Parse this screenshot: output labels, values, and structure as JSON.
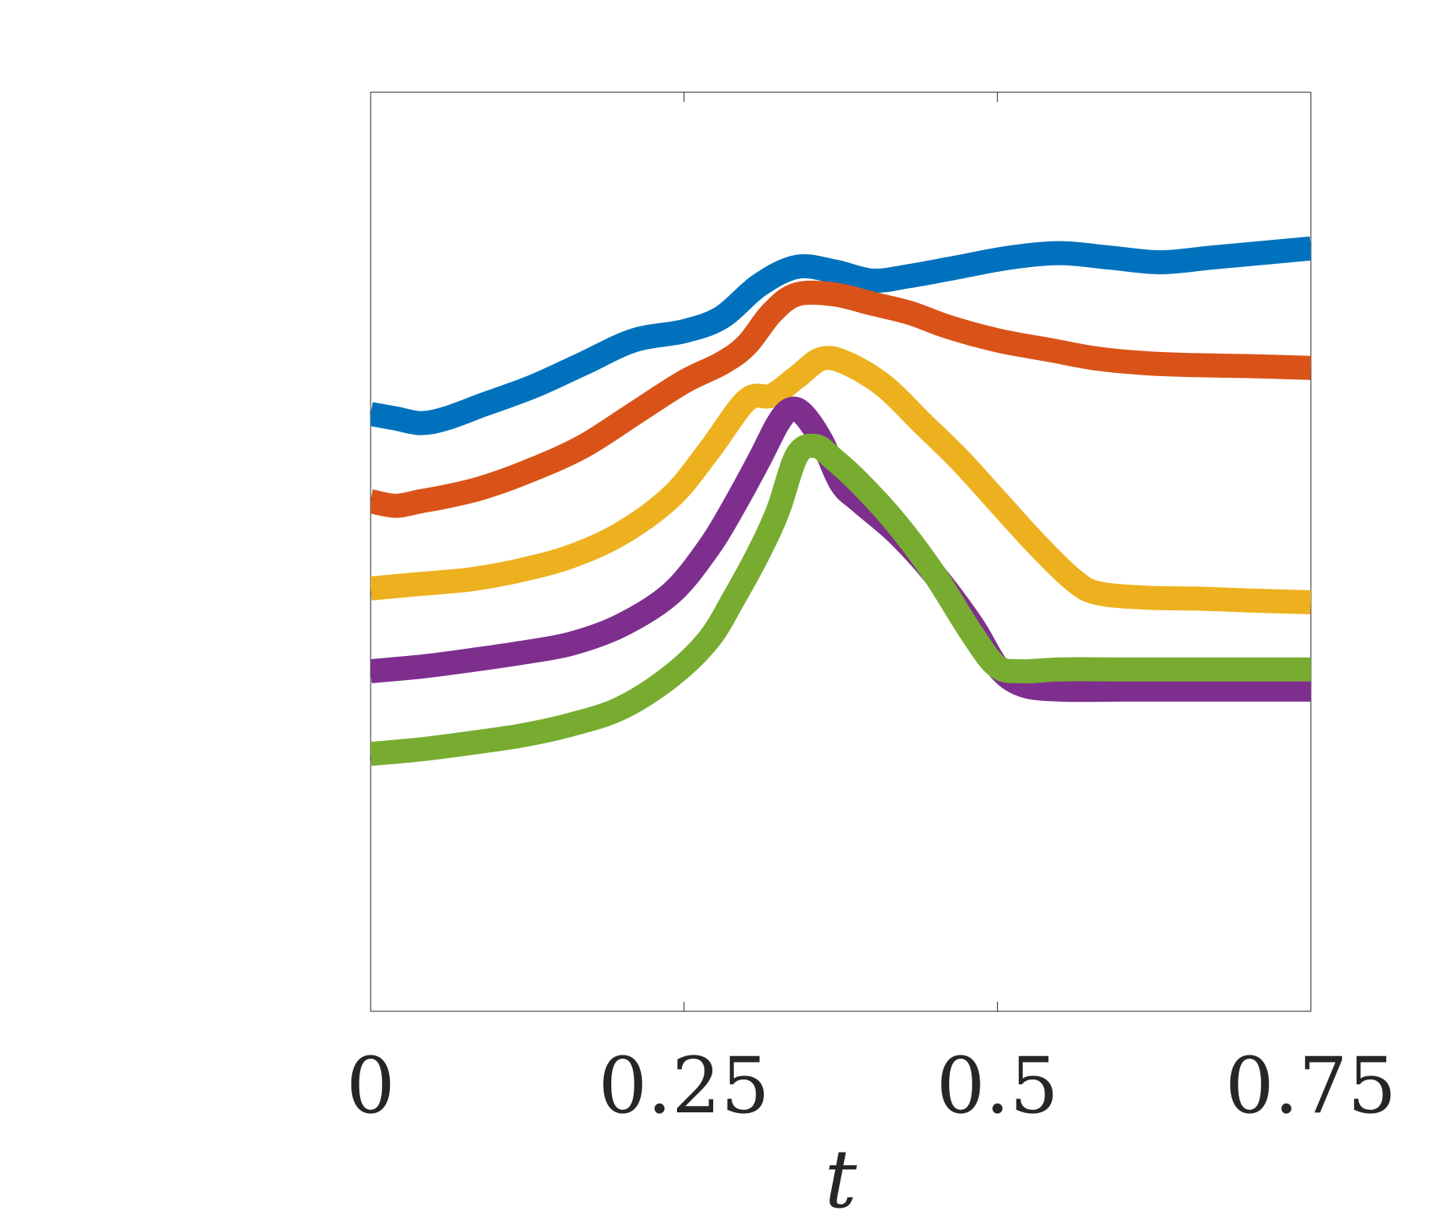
{
  "chart_data": {
    "type": "line",
    "title": "",
    "xlabel": "t",
    "ylabel": "",
    "xlim": [
      0,
      0.75
    ],
    "ylim": [
      0,
      1
    ],
    "xticks": [
      0,
      0.25,
      0.5,
      0.75
    ],
    "xtick_labels": [
      "0",
      "0.25",
      "0.5",
      "0.75"
    ],
    "grid": false,
    "legend": "none",
    "series": [
      {
        "color": "#0072BD",
        "x": [
          0,
          0.02,
          0.04,
          0.06,
          0.09,
          0.13,
          0.17,
          0.21,
          0.25,
          0.28,
          0.31,
          0.34,
          0.37,
          0.4,
          0.43,
          0.47,
          0.51,
          0.55,
          0.59,
          0.63,
          0.67,
          0.71,
          0.75
        ],
        "y": [
          0.65,
          0.645,
          0.64,
          0.645,
          0.66,
          0.68,
          0.705,
          0.73,
          0.74,
          0.755,
          0.79,
          0.81,
          0.805,
          0.795,
          0.8,
          0.81,
          0.82,
          0.825,
          0.82,
          0.815,
          0.82,
          0.825,
          0.83
        ]
      },
      {
        "color": "#D95319",
        "x": [
          0,
          0.02,
          0.04,
          0.06,
          0.09,
          0.13,
          0.17,
          0.21,
          0.25,
          0.28,
          0.3,
          0.32,
          0.34,
          0.37,
          0.4,
          0.43,
          0.46,
          0.5,
          0.54,
          0.58,
          0.62,
          0.66,
          0.7,
          0.75
        ],
        "y": [
          0.555,
          0.55,
          0.555,
          0.56,
          0.57,
          0.59,
          0.615,
          0.65,
          0.685,
          0.705,
          0.725,
          0.76,
          0.78,
          0.78,
          0.77,
          0.76,
          0.745,
          0.73,
          0.72,
          0.71,
          0.705,
          0.703,
          0.702,
          0.7
        ]
      },
      {
        "color": "#EDB120",
        "x": [
          0,
          0.04,
          0.08,
          0.12,
          0.16,
          0.2,
          0.24,
          0.27,
          0.3,
          0.32,
          0.34,
          0.36,
          0.38,
          0.41,
          0.44,
          0.47,
          0.5,
          0.53,
          0.56,
          0.58,
          0.62,
          0.66,
          0.7,
          0.75
        ],
        "y": [
          0.46,
          0.465,
          0.47,
          0.48,
          0.495,
          0.52,
          0.56,
          0.61,
          0.665,
          0.67,
          0.69,
          0.71,
          0.705,
          0.68,
          0.64,
          0.6,
          0.555,
          0.51,
          0.47,
          0.455,
          0.45,
          0.449,
          0.447,
          0.445
        ]
      },
      {
        "color": "#7E2F8E",
        "x": [
          0,
          0.04,
          0.08,
          0.12,
          0.16,
          0.2,
          0.24,
          0.27,
          0.29,
          0.31,
          0.325,
          0.335,
          0.345,
          0.36,
          0.375,
          0.39,
          0.42,
          0.45,
          0.48,
          0.5,
          0.52,
          0.55,
          0.6,
          0.65,
          0.7,
          0.75
        ],
        "y": [
          0.37,
          0.375,
          0.382,
          0.39,
          0.4,
          0.42,
          0.455,
          0.505,
          0.55,
          0.6,
          0.64,
          0.655,
          0.65,
          0.62,
          0.575,
          0.555,
          0.52,
          0.475,
          0.42,
          0.375,
          0.355,
          0.35,
          0.35,
          0.35,
          0.35,
          0.35
        ]
      },
      {
        "color": "#77AC30",
        "x": [
          0,
          0.04,
          0.08,
          0.12,
          0.16,
          0.2,
          0.24,
          0.27,
          0.29,
          0.31,
          0.325,
          0.34,
          0.355,
          0.37,
          0.39,
          0.42,
          0.45,
          0.48,
          0.5,
          0.52,
          0.55,
          0.6,
          0.65,
          0.7,
          0.75
        ],
        "y": [
          0.28,
          0.285,
          0.292,
          0.3,
          0.312,
          0.33,
          0.365,
          0.405,
          0.45,
          0.5,
          0.545,
          0.605,
          0.615,
          0.6,
          0.575,
          0.53,
          0.475,
          0.41,
          0.375,
          0.37,
          0.372,
          0.372,
          0.372,
          0.372,
          0.372
        ]
      }
    ]
  }
}
